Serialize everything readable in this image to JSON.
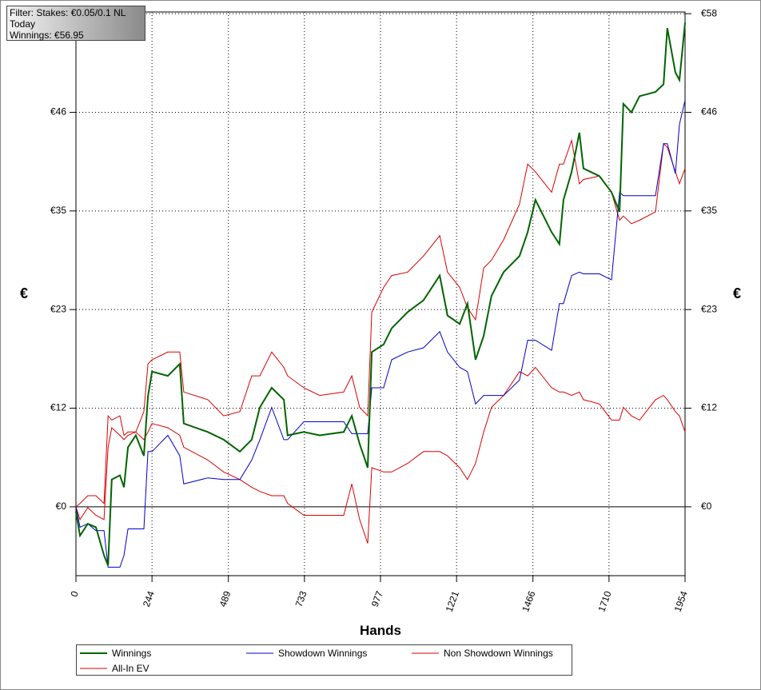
{
  "chart_data": {
    "type": "line",
    "annotations": [
      "Filter: Stakes: €0.05/0.1 NL",
      "Today",
      "Winnings: €56.95"
    ],
    "x_label": "Hands",
    "y_label": "€",
    "x": [
      0,
      13,
      38,
      64,
      90,
      103,
      115,
      141,
      154,
      167,
      192,
      218,
      231,
      244,
      295,
      333,
      346,
      423,
      474,
      526,
      564,
      590,
      628,
      667,
      679,
      731,
      782,
      859,
      885,
      910,
      936,
      949,
      987,
      1013,
      1064,
      1115,
      1167,
      1192,
      1231,
      1256,
      1282,
      1308,
      1333,
      1372,
      1423,
      1449,
      1474,
      1526,
      1551,
      1564,
      1590,
      1615,
      1628,
      1679,
      1718,
      1744,
      1756,
      1782,
      1808,
      1859,
      1885,
      1897,
      1923,
      1936,
      1954
    ],
    "series": [
      {
        "name": "Winnings",
        "color": "#006400",
        "values": [
          -0.6,
          -3.4,
          -2,
          -2.4,
          -5.7,
          -6.9,
          3.2,
          3.7,
          2.3,
          7,
          8.4,
          6,
          13,
          15.9,
          15.4,
          16.8,
          9.8,
          8.8,
          7.9,
          6.5,
          7.9,
          11.7,
          14,
          12.6,
          8.4,
          8.8,
          8.4,
          8.8,
          10.7,
          7.4,
          4.6,
          18.2,
          19.1,
          21,
          22.9,
          24.3,
          27.2,
          22.5,
          21.5,
          23.9,
          17.3,
          20.1,
          24.8,
          27.6,
          29.5,
          32.3,
          36.1,
          32.3,
          30.9,
          36.1,
          39.4,
          44,
          39.8,
          38.9,
          37,
          34.7,
          47.4,
          46.4,
          48.3,
          48.8,
          49.7,
          56.3,
          51.1,
          50.2,
          56.95
        ]
      },
      {
        "name": "Showdown Winnings",
        "color": "#0000cc",
        "values": [
          0,
          -2.4,
          -2,
          -2.8,
          -2.8,
          -7.1,
          -7.1,
          -7.1,
          -5.7,
          -2.6,
          -2.6,
          -2.6,
          6.5,
          6.5,
          8.4,
          6,
          2.7,
          3.4,
          3.2,
          3.2,
          5.5,
          7.9,
          11.7,
          7.9,
          7.9,
          10,
          10,
          10,
          8.6,
          8.6,
          8.6,
          14,
          14,
          17.3,
          18.2,
          18.7,
          20.6,
          18.2,
          16.4,
          15.9,
          12.1,
          13.1,
          13.1,
          13.1,
          14.9,
          19.6,
          19.6,
          18.4,
          23.9,
          23.9,
          27.2,
          27.6,
          27.4,
          27.4,
          26.7,
          37,
          36.6,
          36.6,
          36.6,
          36.6,
          42.7,
          42.7,
          39.2,
          45,
          47.8
        ]
      },
      {
        "name": "Non Showdown Winnings",
        "color": "#dd0000",
        "values": [
          0,
          0.4,
          1.3,
          1.3,
          0.4,
          10.7,
          10.2,
          10.7,
          8.4,
          8.8,
          8.8,
          11.2,
          16.8,
          17.3,
          18.2,
          18.2,
          13.5,
          12.6,
          10.7,
          11.2,
          15.4,
          15.4,
          18.2,
          16.4,
          15.4,
          14,
          13.1,
          13.5,
          15.4,
          11.7,
          10.7,
          22.9,
          25.8,
          27.2,
          27.6,
          29.5,
          31.9,
          27.6,
          25.8,
          23.4,
          22,
          28.1,
          29,
          31.4,
          35.6,
          40.3,
          39.4,
          37,
          40.3,
          40.3,
          43.1,
          38,
          38.5,
          38.9,
          37,
          33.7,
          34.2,
          33.3,
          33.7,
          34.7,
          42.7,
          42.3,
          39.4,
          38,
          39.8
        ]
      },
      {
        "name": "All-In EV",
        "color": "#dd0000",
        "values": [
          0,
          -1.5,
          -0.1,
          -1,
          -1.5,
          7,
          9.3,
          8.4,
          7.9,
          8.4,
          8.8,
          7.9,
          8.8,
          9.8,
          9.3,
          8.4,
          7,
          5.5,
          4.1,
          3.2,
          2.3,
          1.8,
          1.3,
          1.3,
          0.4,
          -1,
          -1,
          -1,
          2.7,
          -1.5,
          -4.3,
          4.6,
          4.1,
          4.1,
          5.1,
          6.5,
          6.5,
          6,
          4.6,
          3.2,
          5.1,
          8.8,
          11.7,
          13.1,
          15.9,
          15.4,
          16.4,
          14,
          13.5,
          13.5,
          13.1,
          13.5,
          12.6,
          12.1,
          10.2,
          10.2,
          11.7,
          10.7,
          10.2,
          12.6,
          13.1,
          12.6,
          11.2,
          10.7,
          8.8
        ]
      }
    ],
    "xlim": [
      0,
      1954
    ],
    "xticks": [
      0,
      244,
      489,
      733,
      977,
      1221,
      1466,
      1710,
      1954
    ],
    "ylim": [
      -8.1,
      58.2
    ],
    "yticks": [
      {
        "value": 0,
        "label": "€0"
      },
      {
        "value": 11.6,
        "label": "€12"
      },
      {
        "value": 23.2,
        "label": "€23"
      },
      {
        "value": 34.8,
        "label": "€35"
      },
      {
        "value": 46.4,
        "label": "€46"
      },
      {
        "value": 58,
        "label": "€58"
      }
    ],
    "grid": true
  }
}
